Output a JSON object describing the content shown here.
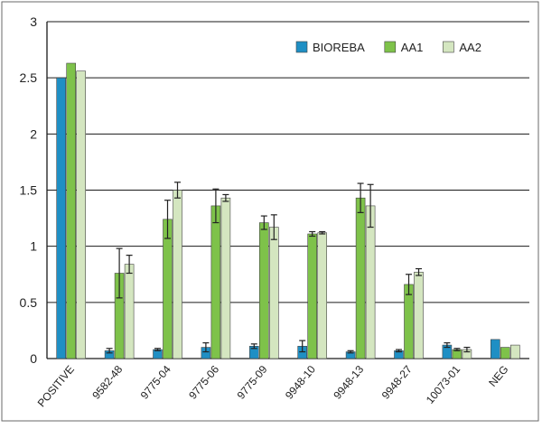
{
  "chart_data": {
    "type": "bar",
    "title": "",
    "xlabel": "",
    "ylabel": "",
    "ylim": [
      0,
      3
    ],
    "yticks": [
      0,
      0.5,
      1,
      1.5,
      2,
      2.5,
      3
    ],
    "ytick_labels": [
      "0",
      "0.5",
      "1",
      "1.5",
      "2",
      "2.5",
      "3"
    ],
    "grid": true,
    "legend_position": "top-right",
    "categories": [
      "POSITIVE",
      "9582-48",
      "9775-04",
      "9775-06",
      "9775-09",
      "9948-10",
      "9948-13",
      "9948-27",
      "10073-01",
      "NEG"
    ],
    "series": [
      {
        "name": "BIOREBA",
        "color": "#1f8fc4",
        "values": [
          2.5,
          0.07,
          0.08,
          0.1,
          0.11,
          0.11,
          0.06,
          0.07,
          0.12,
          0.17
        ],
        "errors": [
          0,
          0.02,
          0.01,
          0.04,
          0.02,
          0.05,
          0.01,
          0.01,
          0.02,
          0
        ]
      },
      {
        "name": "AA1",
        "color": "#7ec24a",
        "values": [
          2.63,
          0.76,
          1.24,
          1.36,
          1.21,
          1.11,
          1.43,
          0.66,
          0.08,
          0.1
        ],
        "errors": [
          0,
          0.22,
          0.17,
          0.15,
          0.06,
          0.02,
          0.13,
          0.09,
          0.01,
          0
        ]
      },
      {
        "name": "AA2",
        "color": "#d4e6c0",
        "values": [
          2.56,
          0.84,
          1.5,
          1.43,
          1.17,
          1.12,
          1.36,
          0.77,
          0.08,
          0.12
        ],
        "errors": [
          0,
          0.08,
          0.07,
          0.03,
          0.11,
          0.01,
          0.19,
          0.03,
          0.02,
          0
        ]
      }
    ]
  }
}
